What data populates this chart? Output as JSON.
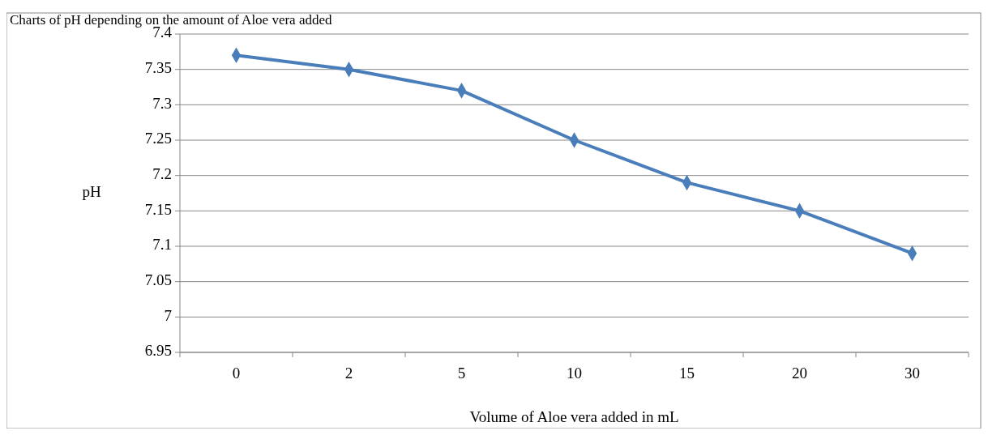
{
  "chart_data": {
    "type": "line",
    "title": "Charts of pH depending on the amount of Aloe vera added",
    "xlabel": "Volume of Aloe vera added in mL",
    "ylabel": "pH",
    "categories": [
      "0",
      "2",
      "5",
      "10",
      "15",
      "20",
      "30"
    ],
    "series": [
      {
        "color": "#4a7ebb",
        "values": [
          7.37,
          7.35,
          7.32,
          7.25,
          7.19,
          7.15,
          7.09
        ]
      }
    ],
    "ylim": [
      6.95,
      7.4
    ],
    "yticks": [
      6.95,
      7,
      7.05,
      7.1,
      7.15,
      7.2,
      7.25,
      7.3,
      7.35,
      7.4
    ],
    "grid": "y",
    "marker": "diamond"
  }
}
